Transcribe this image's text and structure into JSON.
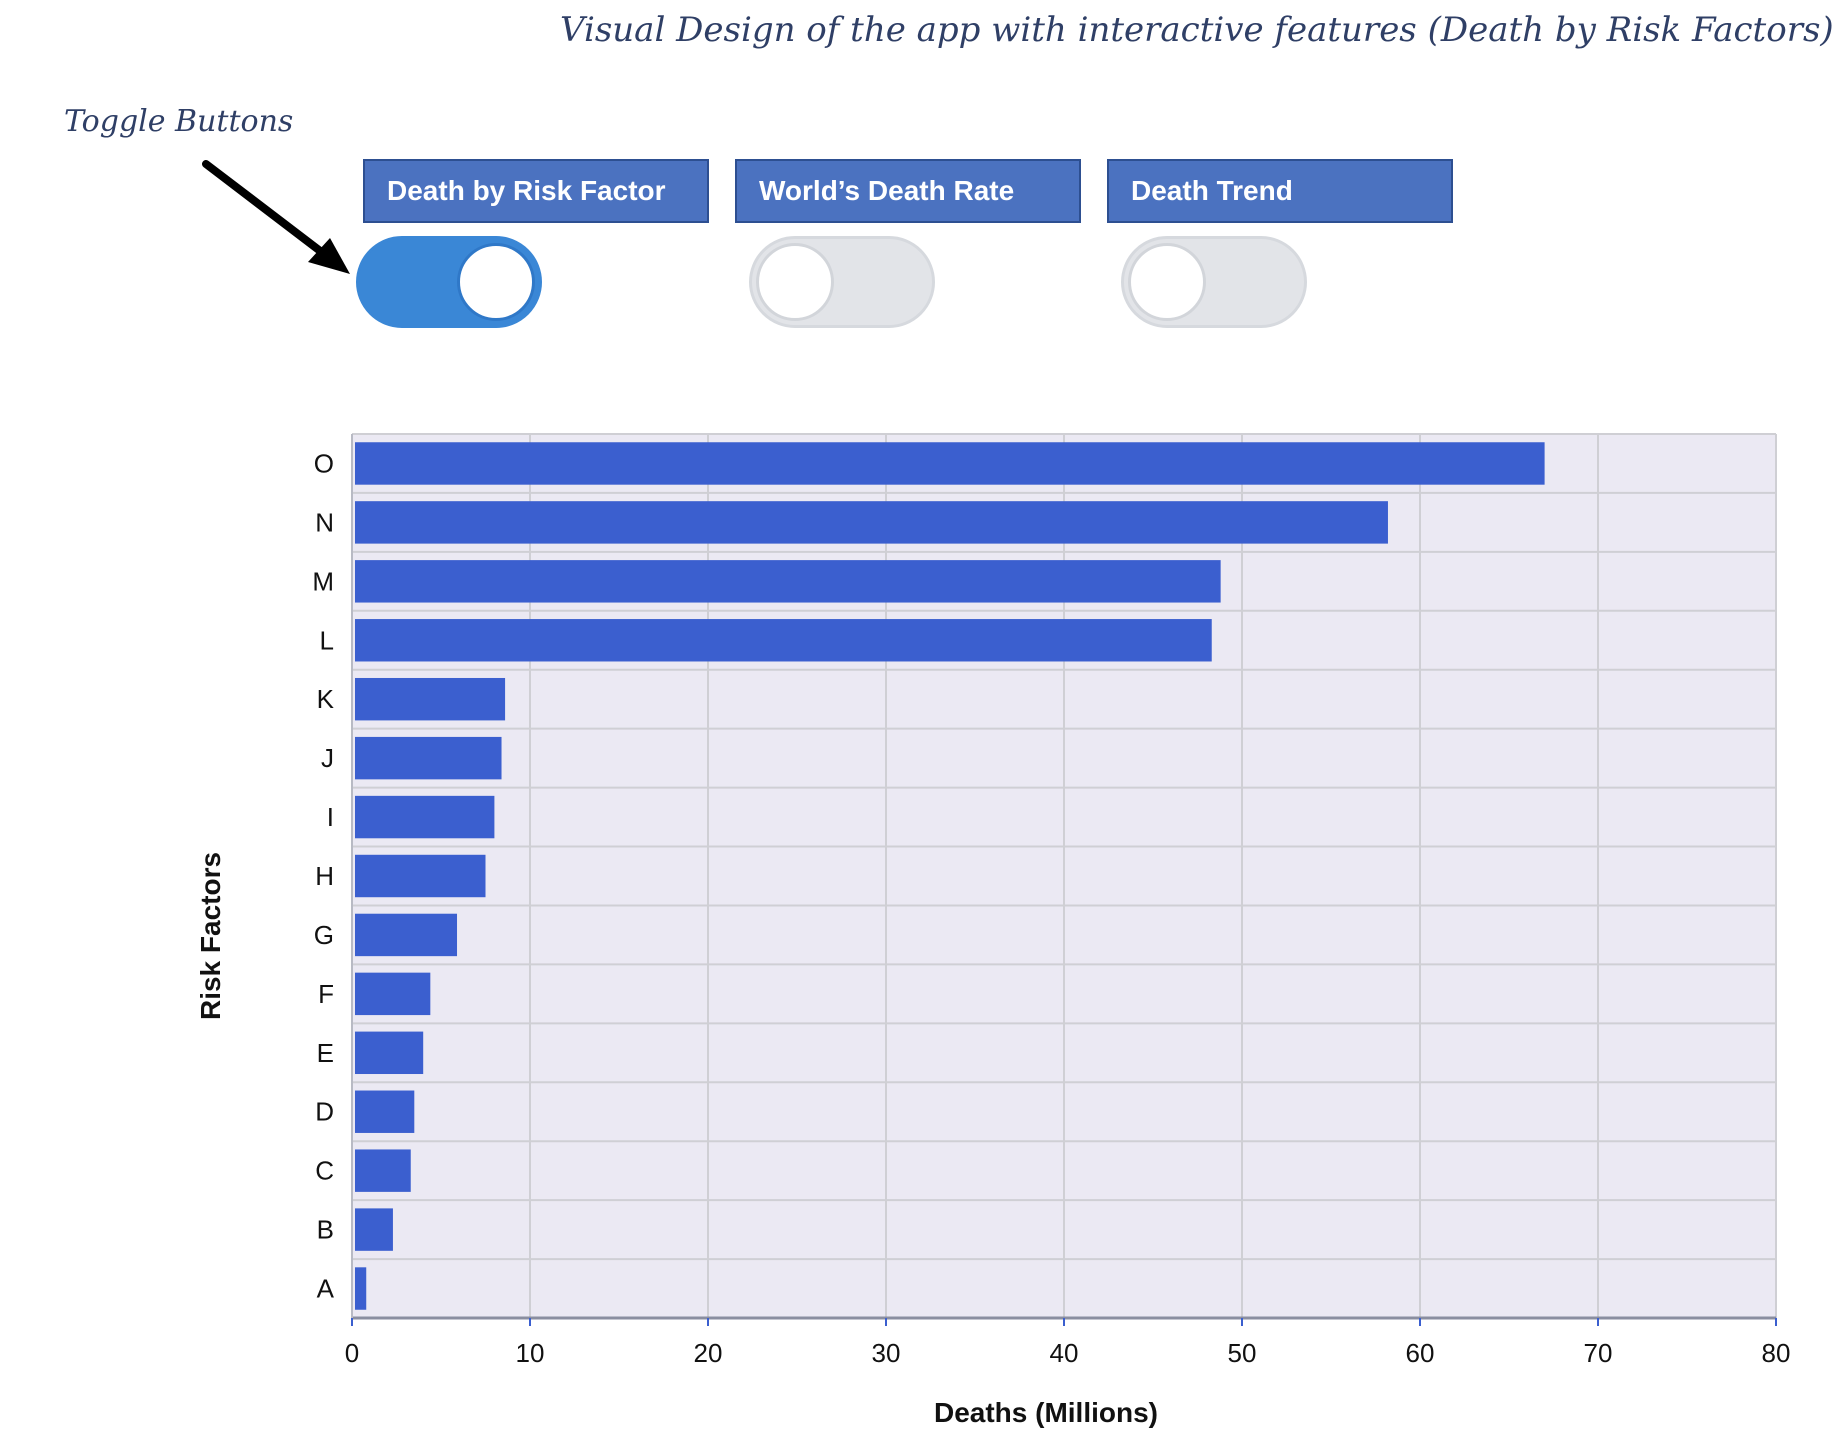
{
  "page_title": "Visual Design of the app with interactive features (Death by Risk Factors)",
  "annotation": {
    "label": "Toggle Buttons"
  },
  "tabs": [
    {
      "label": "Death by Risk Factor",
      "toggle_on": true
    },
    {
      "label": "World’s Death Rate",
      "toggle_on": false
    },
    {
      "label": "Death Trend",
      "toggle_on": false
    }
  ],
  "colors": {
    "bar": "#3b5fcf",
    "plot_bg": "#ebe9f3",
    "grid": "#cfcfd4",
    "toggle_on": "#3a87d6",
    "toggle_off": "#e2e4e8",
    "tab_bg": "#4b72c0"
  },
  "chart_data": {
    "type": "bar",
    "orientation": "horizontal",
    "title": "",
    "categories": [
      "A",
      "B",
      "C",
      "D",
      "E",
      "F",
      "G",
      "H",
      "I",
      "J",
      "K",
      "L",
      "M",
      "N",
      "O"
    ],
    "values": [
      0.8,
      2.3,
      3.3,
      3.5,
      4.0,
      4.4,
      5.9,
      7.5,
      8.0,
      8.4,
      8.6,
      48.3,
      48.8,
      58.2,
      67.0
    ],
    "xlabel": "Deaths (Millions)",
    "ylabel": "Risk Factors",
    "xlim": [
      0,
      80
    ],
    "xticks": [
      0,
      10,
      20,
      30,
      40,
      50,
      60,
      70,
      80
    ],
    "grid": true,
    "legend": "none"
  }
}
